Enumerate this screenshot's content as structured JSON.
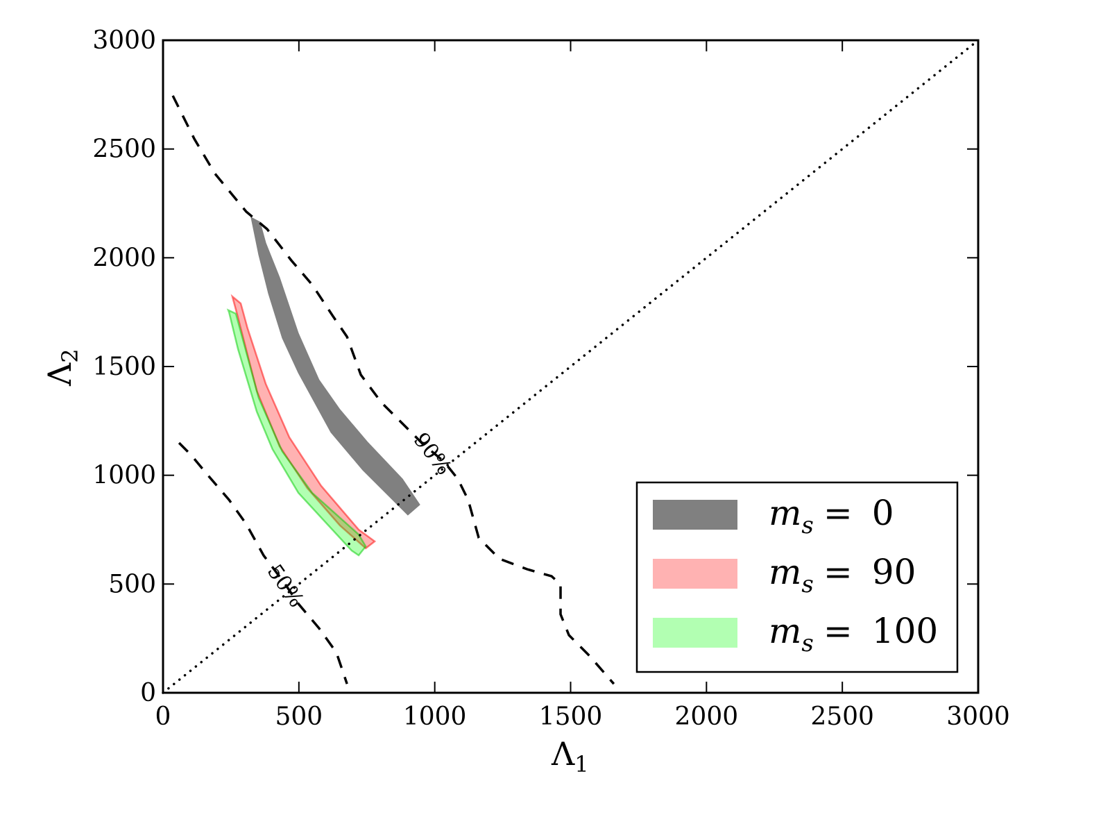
{
  "chart_data": {
    "type": "area",
    "title": "",
    "xlabel": {
      "main": "Λ",
      "sub": "1"
    },
    "ylabel": {
      "main": "Λ",
      "sub": "2"
    },
    "xlim": [
      0,
      3000
    ],
    "ylim": [
      0,
      3000
    ],
    "xticks": [
      "0",
      "500",
      "1000",
      "1500",
      "2000",
      "2500",
      "3000"
    ],
    "yticks": [
      "0",
      "500",
      "1000",
      "1500",
      "2000",
      "2500",
      "3000"
    ],
    "grid": false,
    "legend_position": "lower-right",
    "diagonal": {
      "style": "dotted",
      "from": [
        0,
        0
      ],
      "to": [
        3000,
        3000
      ]
    },
    "contours": [
      {
        "name": "90%",
        "label": "90%",
        "label_at": [
          988,
          1095
        ],
        "label_angle": 52,
        "points": [
          [
            36,
            2745
          ],
          [
            115,
            2547
          ],
          [
            191,
            2387
          ],
          [
            306,
            2212
          ],
          [
            383,
            2132
          ],
          [
            472,
            1988
          ],
          [
            549,
            1876
          ],
          [
            625,
            1732
          ],
          [
            677,
            1637
          ],
          [
            728,
            1462
          ],
          [
            804,
            1334
          ],
          [
            881,
            1238
          ],
          [
            957,
            1143
          ],
          [
            1034,
            1063
          ],
          [
            1085,
            983
          ],
          [
            1123,
            887
          ],
          [
            1162,
            712
          ],
          [
            1238,
            616
          ],
          [
            1340,
            568
          ],
          [
            1430,
            536
          ],
          [
            1463,
            498
          ],
          [
            1463,
            361
          ],
          [
            1494,
            265
          ],
          [
            1570,
            169
          ],
          [
            1659,
            41
          ]
        ]
      },
      {
        "name": "50%",
        "label": "50%",
        "label_at": [
          447,
          488
        ],
        "label_angle": 55,
        "points": [
          [
            59,
            1149
          ],
          [
            102,
            1095
          ],
          [
            166,
            999
          ],
          [
            243,
            887
          ],
          [
            306,
            776
          ],
          [
            370,
            632
          ],
          [
            447,
            504
          ],
          [
            498,
            409
          ],
          [
            574,
            297
          ],
          [
            638,
            185
          ],
          [
            677,
            41
          ]
        ]
      }
    ],
    "series": [
      {
        "name": "m_s = 0",
        "symbol": "m",
        "sub": "s",
        "op": "=",
        "value": "0",
        "color": "#808080",
        "edge": "#808080",
        "opacity": 1,
        "upper": [
          [
            324,
            2186
          ],
          [
            357,
            2164
          ],
          [
            378,
            2068
          ],
          [
            429,
            1909
          ],
          [
            498,
            1653
          ],
          [
            574,
            1439
          ],
          [
            651,
            1302
          ],
          [
            753,
            1152
          ],
          [
            881,
            983
          ],
          [
            945,
            865
          ]
        ],
        "lower": [
          [
            324,
            2186
          ],
          [
            352,
            2014
          ],
          [
            388,
            1835
          ],
          [
            439,
            1631
          ],
          [
            498,
            1471
          ],
          [
            618,
            1197
          ],
          [
            735,
            1024
          ],
          [
            901,
            817
          ]
        ]
      },
      {
        "name": "m_s = 90",
        "symbol": "m",
        "sub": "s",
        "op": "=",
        "value": "90",
        "color": "#ff0000",
        "edge": "#ff0000",
        "opacity": 0.3,
        "upper": [
          [
            255,
            1822
          ],
          [
            286,
            1790
          ],
          [
            311,
            1676
          ],
          [
            378,
            1420
          ],
          [
            465,
            1174
          ],
          [
            582,
            951
          ],
          [
            720,
            750
          ],
          [
            779,
            696
          ]
        ],
        "lower": [
          [
            255,
            1822
          ],
          [
            273,
            1739
          ],
          [
            345,
            1388
          ],
          [
            429,
            1133
          ],
          [
            531,
            941
          ],
          [
            651,
            769
          ],
          [
            746,
            664
          ]
        ]
      },
      {
        "name": "m_s = 100",
        "symbol": "m",
        "sub": "s",
        "op": "=",
        "value": "100",
        "color": "#00ff00",
        "edge": "#00cc00",
        "opacity": 0.3,
        "upper": [
          [
            240,
            1759
          ],
          [
            268,
            1743
          ],
          [
            352,
            1356
          ],
          [
            439,
            1110
          ],
          [
            549,
            919
          ],
          [
            720,
            728
          ],
          [
            746,
            673
          ]
        ],
        "lower": [
          [
            240,
            1759
          ],
          [
            243,
            1749
          ],
          [
            276,
            1580
          ],
          [
            345,
            1293
          ],
          [
            403,
            1120
          ],
          [
            498,
            919
          ],
          [
            694,
            654
          ],
          [
            720,
            632
          ]
        ]
      }
    ]
  }
}
